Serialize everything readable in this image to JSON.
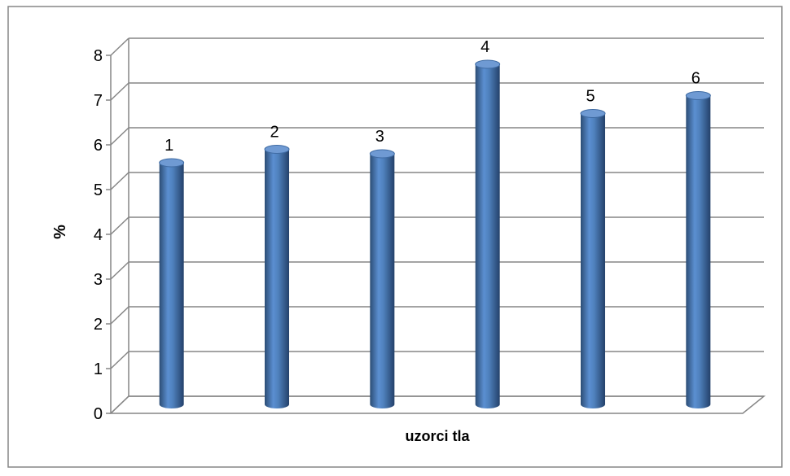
{
  "chart_data": {
    "type": "bar",
    "title": "",
    "xlabel": "uzorci tla",
    "ylabel": "%",
    "ylim": [
      0,
      8
    ],
    "yticks": [
      0,
      1,
      2,
      3,
      4,
      5,
      6,
      7,
      8
    ],
    "categories": [
      "1",
      "2",
      "3",
      "4",
      "5",
      "6"
    ],
    "values": [
      5.4,
      5.7,
      5.6,
      7.6,
      6.5,
      6.9
    ],
    "grid": true,
    "legend": "none",
    "bar_style": "3d cylinder",
    "colors": {
      "bar": "#4f81bd",
      "bar_dark": "#2c4d75",
      "bar_light": "#9db9e0",
      "grid": "#868686",
      "frame": "#868686"
    }
  }
}
